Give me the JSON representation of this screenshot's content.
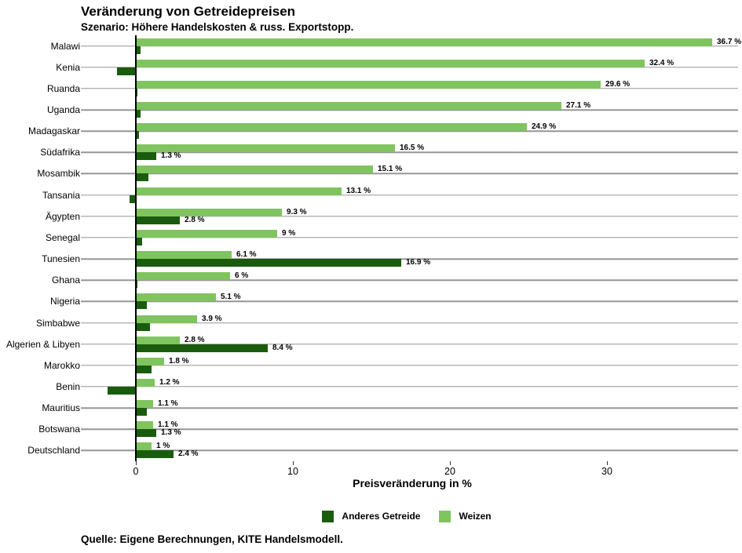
{
  "header": {
    "title": "Veränderung von Getreidepreisen",
    "subtitle": "Szenario: Höhere Handelskosten & russ. Exportstopp."
  },
  "chart_data": {
    "type": "bar",
    "orientation": "horizontal",
    "title": "Veränderung von Getreidepreisen",
    "subtitle": "Szenario: Höhere Handelskosten & russ. Exportstopp.",
    "xlabel": "Preisveränderung in %",
    "x_ticks": [
      0,
      10,
      20,
      30
    ],
    "x_tick_labels": [
      "0",
      "10",
      "20",
      "30"
    ],
    "xlim": [
      -3.15,
      38.35
    ],
    "grid": "horizontal gray line at each category center",
    "legend_position": "bottom-center",
    "axis_color": "#000000",
    "gridline_color": "#969696",
    "categories": [
      "Malawi",
      "Kenia",
      "Ruanda",
      "Uganda",
      "Madagaskar",
      "Südafrika",
      "Mosambik",
      "Tansania",
      "Ägypten",
      "Senegal",
      "Tunesien",
      "Ghana",
      "Nigeria",
      "Simbabwe",
      "Algerien & Libyen",
      "Marokko",
      "Benin",
      "Mauritius",
      "Botswana",
      "Deutschland"
    ],
    "series": [
      {
        "name": "Anderes Getreide",
        "color": "#1A5C0E",
        "values": [
          0.3,
          -1.2,
          0.1,
          0.3,
          0.2,
          1.3,
          0.8,
          -0.4,
          2.8,
          0.4,
          16.9,
          0.1,
          0.7,
          0.9,
          8.4,
          1.0,
          -1.8,
          0.7,
          1.3,
          2.4
        ],
        "labels": [
          "",
          "",
          "",
          "",
          "",
          "1.3 %",
          "",
          "",
          "2.8 %",
          "",
          "16.9 %",
          "",
          "",
          "",
          "8.4 %",
          "",
          "",
          "",
          "1.3 %",
          "2.4 %"
        ]
      },
      {
        "name": "Weizen",
        "color": "#7FC45F",
        "values": [
          36.7,
          32.4,
          29.6,
          27.1,
          24.9,
          16.5,
          15.1,
          13.1,
          9.3,
          9,
          6.1,
          6,
          5.1,
          3.9,
          2.8,
          1.8,
          1.2,
          1.1,
          1.1,
          1
        ],
        "labels": [
          "36.7 %",
          "32.4 %",
          "29.6 %",
          "27.1 %",
          "24.9 %",
          "16.5 %",
          "15.1 %",
          "13.1 %",
          "9.3 %",
          "9 %",
          "6.1 %",
          "6 %",
          "5.1 %",
          "3.9 %",
          "2.8 %",
          "1.8 %",
          "1.2 %",
          "1.1 %",
          "1.1 %",
          "1 %"
        ]
      }
    ]
  },
  "caption": {
    "source": "Quelle: Eigene Berechnungen, KITE Handelsmodell."
  }
}
